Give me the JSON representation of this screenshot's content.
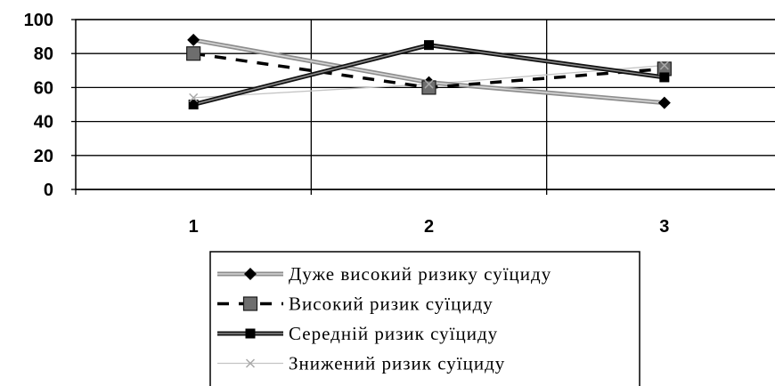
{
  "chart_data": {
    "type": "line",
    "categories": [
      "1",
      "2",
      "3"
    ],
    "ylim": [
      0,
      100
    ],
    "yticks": [
      "0",
      "20",
      "40",
      "60",
      "80",
      "100"
    ],
    "grid": true,
    "legend_position": "bottom",
    "series": [
      {
        "name": "Дуже високий ризику суїциду",
        "values": [
          88,
          63,
          51
        ],
        "color": "#9a9a9a",
        "marker": "diamond",
        "style": "double-gray"
      },
      {
        "name": "Високий ризик суїциду",
        "values": [
          80,
          60,
          71
        ],
        "color": "#000000",
        "marker": "square-gray",
        "style": "dashed"
      },
      {
        "name": "Середній ризик суїциду",
        "values": [
          50,
          85,
          66
        ],
        "color": "#000000",
        "marker": "square",
        "style": "double-dark"
      },
      {
        "name": "Знижений ризик суїциду",
        "values": [
          54,
          62,
          73
        ],
        "color": "#bcbcbc",
        "marker": "x",
        "style": "thin-light"
      }
    ]
  }
}
